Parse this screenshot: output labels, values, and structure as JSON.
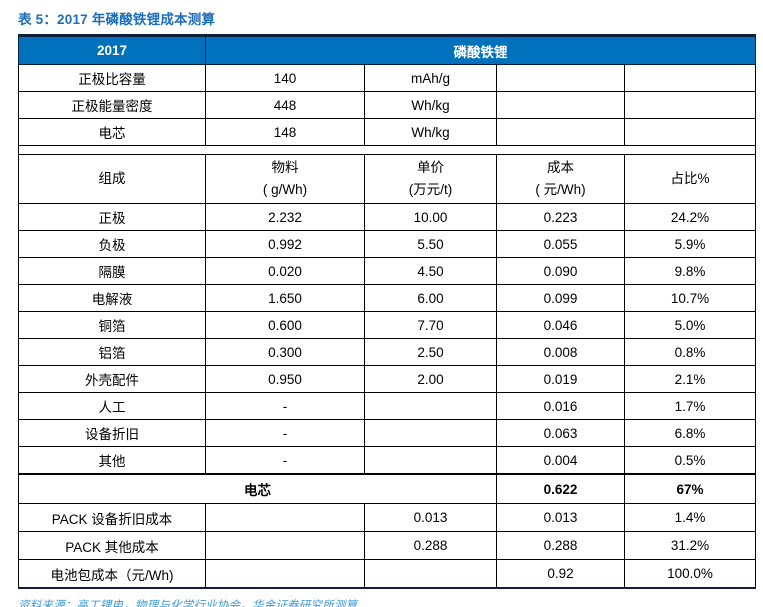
{
  "title": "表 5：2017 年磷酸铁锂成本测算",
  "source": "资料来源：高工锂电，物理与化学行业协会，华金证券研究所测算",
  "colors": {
    "header_bg": "#0071bc",
    "header_text": "#ffffff",
    "title_text": "#1d6eb8",
    "source_text": "#3d9ad6",
    "border_dark": "#101f3d",
    "border": "#000000"
  },
  "table": {
    "top_header": {
      "year": "2017",
      "product": "磷酸铁锂"
    },
    "spec_rows": [
      {
        "label": "正极比容量",
        "value": "140",
        "unit": "mAh/g",
        "cost": "",
        "share": ""
      },
      {
        "label": "正极能量密度",
        "value": "448",
        "unit": "Wh/kg",
        "cost": "",
        "share": ""
      },
      {
        "label": "电芯",
        "value": "148",
        "unit": "Wh/kg",
        "cost": "",
        "share": ""
      }
    ],
    "columns_header": {
      "c1": "组成",
      "c2_line1": "物料",
      "c2_line2": "( g/Wh)",
      "c3_line1": "单价",
      "c3_line2": "(万元/t)",
      "c4_line1": "成本",
      "c4_line2": "( 元/Wh)",
      "c5": "占比%"
    },
    "component_rows": [
      {
        "label": "正极",
        "material": "2.232",
        "price": "10.00",
        "cost": "0.223",
        "share": "24.2%"
      },
      {
        "label": "负极",
        "material": "0.992",
        "price": "5.50",
        "cost": "0.055",
        "share": "5.9%"
      },
      {
        "label": "隔膜",
        "material": "0.020",
        "price": "4.50",
        "cost": "0.090",
        "share": "9.8%"
      },
      {
        "label": "电解液",
        "material": "1.650",
        "price": "6.00",
        "cost": "0.099",
        "share": "10.7%"
      },
      {
        "label": "铜箔",
        "material": "0.600",
        "price": "7.70",
        "cost": "0.046",
        "share": "5.0%"
      },
      {
        "label": "铝箔",
        "material": "0.300",
        "price": "2.50",
        "cost": "0.008",
        "share": "0.8%"
      },
      {
        "label": "外壳配件",
        "material": "0.950",
        "price": "2.00",
        "cost": "0.019",
        "share": "2.1%"
      },
      {
        "label": "人工",
        "material": "-",
        "price": "",
        "cost": "0.016",
        "share": "1.7%"
      },
      {
        "label": "设备折旧",
        "material": "-",
        "price": "",
        "cost": "0.063",
        "share": "6.8%"
      },
      {
        "label": "其他",
        "material": "-",
        "price": "",
        "cost": "0.004",
        "share": "0.5%"
      }
    ],
    "cell_total_row": {
      "label": "电芯",
      "cost": "0.622",
      "share": "67%"
    },
    "pack_rows": [
      {
        "label": "PACK 设备折旧成本",
        "material": "",
        "price": "0.013",
        "cost": "0.013",
        "share": "1.4%"
      },
      {
        "label": "PACK 其他成本",
        "material": "",
        "price": "0.288",
        "cost": "0.288",
        "share": "31.2%"
      }
    ],
    "pack_total_row": {
      "label": "电池包成本（元/Wh)",
      "material": "",
      "price": "",
      "cost": "0.92",
      "share": "100.0%"
    }
  }
}
